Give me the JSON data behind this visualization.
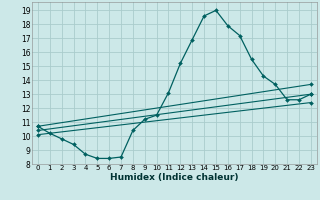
{
  "xlabel": "Humidex (Indice chaleur)",
  "bg_color": "#cce8e8",
  "grid_color": "#aacccc",
  "line_color": "#006060",
  "xlim": [
    -0.5,
    23.5
  ],
  "ylim": [
    8,
    19.6
  ],
  "yticks": [
    8,
    9,
    10,
    11,
    12,
    13,
    14,
    15,
    16,
    17,
    18,
    19
  ],
  "xticks": [
    0,
    1,
    2,
    3,
    4,
    5,
    6,
    7,
    8,
    9,
    10,
    11,
    12,
    13,
    14,
    15,
    16,
    17,
    18,
    19,
    20,
    21,
    22,
    23
  ],
  "main_x": [
    0,
    1,
    2,
    3,
    4,
    5,
    6,
    7,
    8,
    9,
    10,
    11,
    12,
    13,
    14,
    15,
    16,
    17,
    18,
    19,
    20,
    21,
    22,
    23
  ],
  "main_y": [
    10.7,
    10.2,
    9.8,
    9.4,
    8.7,
    8.4,
    8.4,
    8.5,
    10.4,
    11.2,
    11.5,
    13.1,
    15.2,
    16.9,
    18.6,
    19.0,
    17.9,
    17.2,
    15.5,
    14.3,
    13.7,
    12.6,
    12.6,
    13.0
  ],
  "ref_lines": [
    {
      "x": [
        0,
        23
      ],
      "y": [
        10.7,
        13.7
      ]
    },
    {
      "x": [
        0,
        23
      ],
      "y": [
        10.4,
        13.0
      ]
    },
    {
      "x": [
        0,
        23
      ],
      "y": [
        10.1,
        12.4
      ]
    }
  ]
}
